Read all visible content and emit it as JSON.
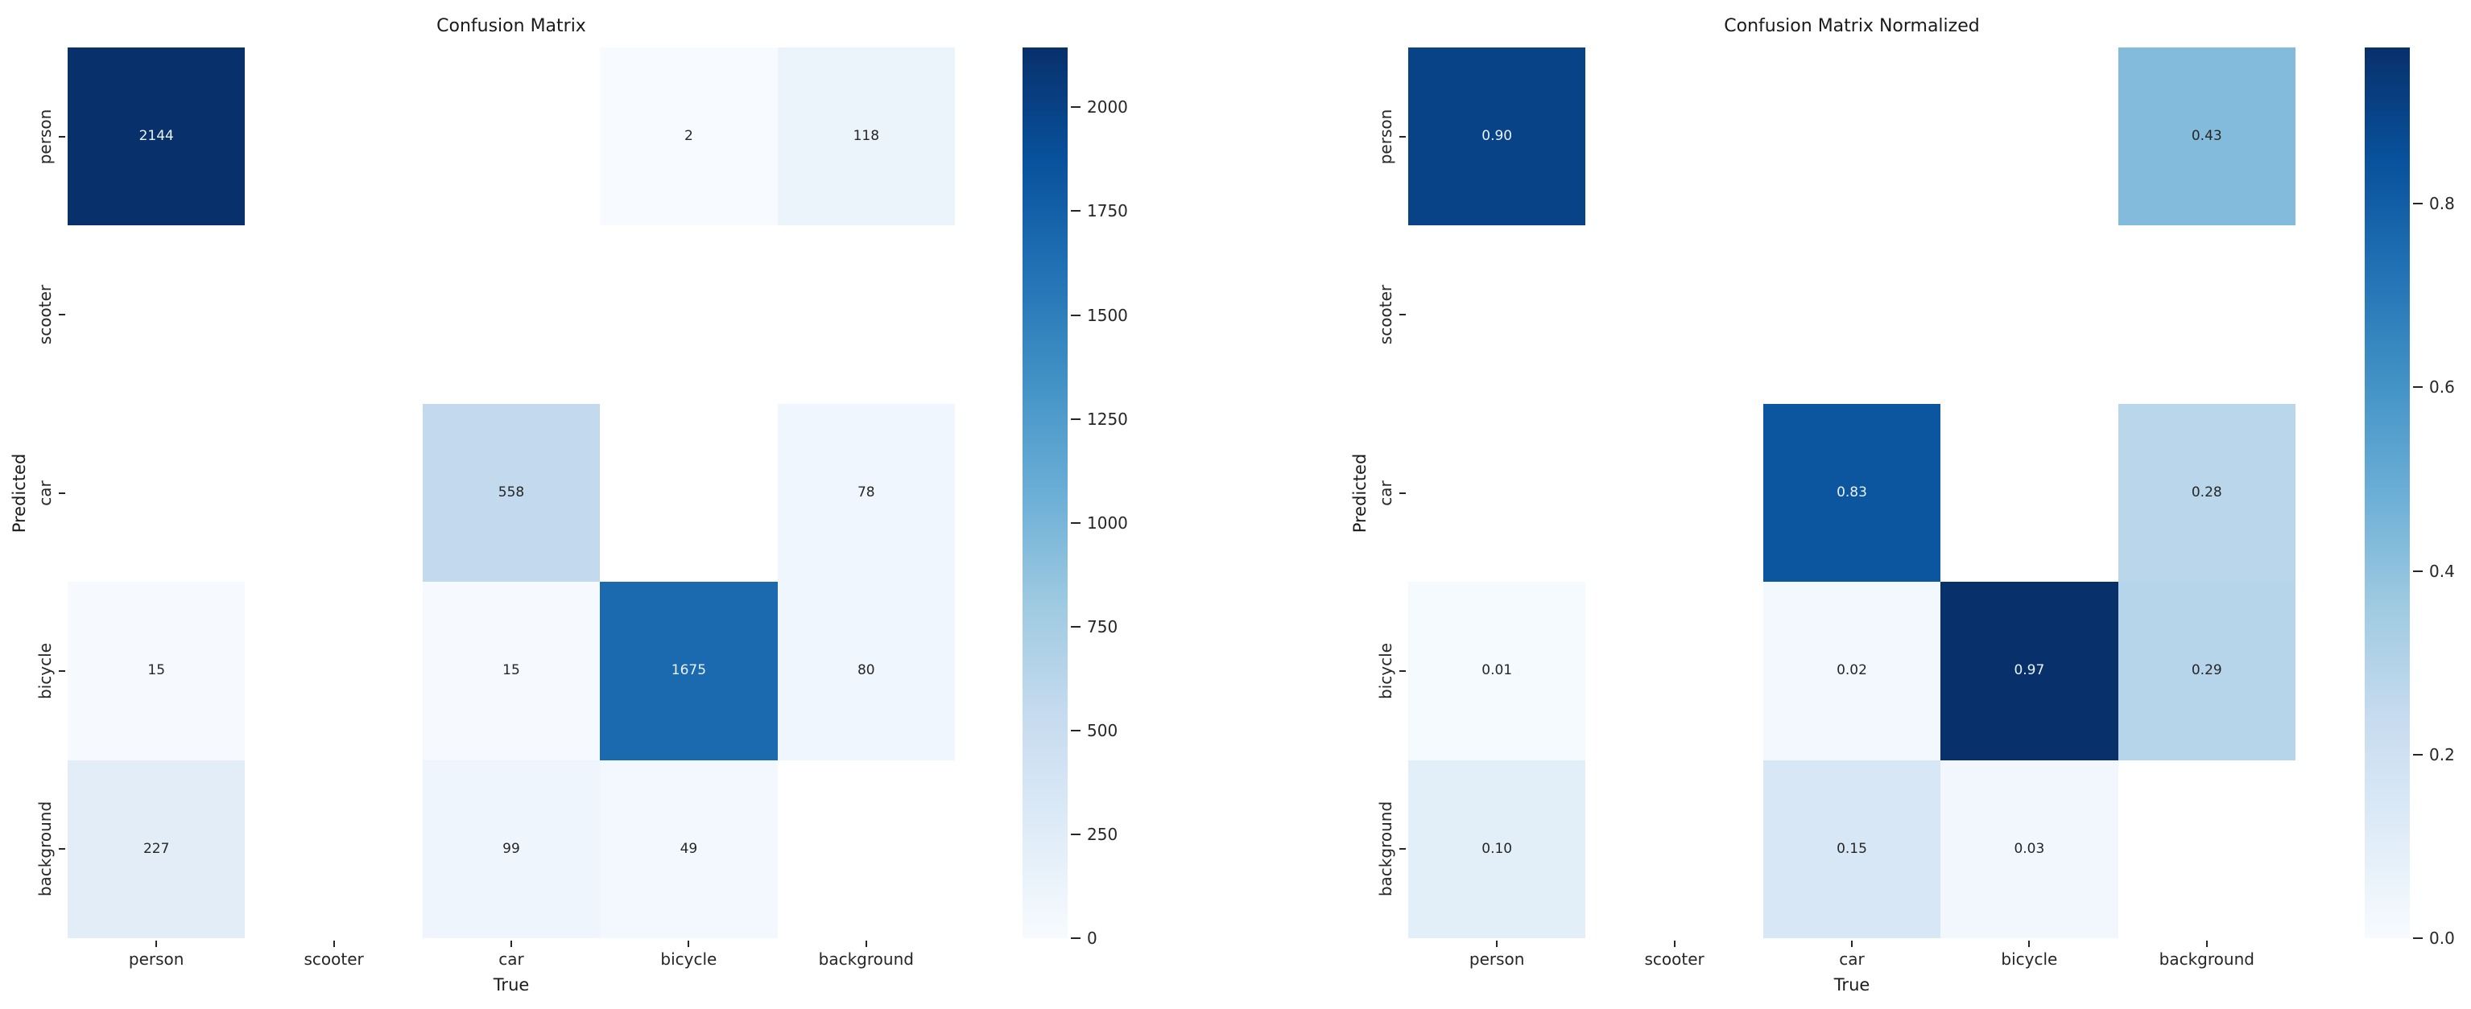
{
  "figure": {
    "background": "#ffffff",
    "text_color": "#262626"
  },
  "chart_data": [
    {
      "type": "heatmap",
      "title": "Confusion Matrix",
      "xlabel": "True",
      "ylabel": "Predicted",
      "x_categories": [
        "person",
        "scooter",
        "car",
        "bicycle",
        "background"
      ],
      "y_categories": [
        "person",
        "scooter",
        "car",
        "bicycle",
        "background"
      ],
      "matrix": [
        [
          2144,
          null,
          null,
          2,
          118
        ],
        [
          null,
          null,
          null,
          null,
          null
        ],
        [
          null,
          null,
          558,
          null,
          78
        ],
        [
          15,
          null,
          15,
          1675,
          80
        ],
        [
          227,
          null,
          99,
          49,
          null
        ]
      ],
      "vmin": 0,
      "vmax": 2144,
      "value_decimals": 0,
      "colormap": "Blues",
      "colormap_min_color": "#f7fbff",
      "colormap_max_color": "#08306b",
      "colorbar_position": "right",
      "colorbar_ticks": [
        0,
        250,
        500,
        750,
        1000,
        1250,
        1500,
        1750,
        2000
      ],
      "colorbar_tick_labels": [
        "0",
        "250",
        "500",
        "750",
        "1000",
        "1250",
        "1500",
        "1750",
        "2000"
      ],
      "grid": false
    },
    {
      "type": "heatmap",
      "title": "Confusion Matrix Normalized",
      "xlabel": "True",
      "ylabel": "Predicted",
      "x_categories": [
        "person",
        "scooter",
        "car",
        "bicycle",
        "background"
      ],
      "y_categories": [
        "person",
        "scooter",
        "car",
        "bicycle",
        "background"
      ],
      "matrix": [
        [
          0.9,
          null,
          null,
          null,
          0.43
        ],
        [
          null,
          null,
          null,
          null,
          null
        ],
        [
          null,
          null,
          0.83,
          null,
          0.28
        ],
        [
          0.01,
          null,
          0.02,
          0.97,
          0.29
        ],
        [
          0.1,
          null,
          0.15,
          0.03,
          null
        ]
      ],
      "vmin": 0,
      "vmax": 0.97,
      "value_decimals": 2,
      "colormap": "Blues",
      "colormap_min_color": "#f7fbff",
      "colormap_max_color": "#08306b",
      "colorbar_position": "right",
      "colorbar_ticks": [
        0.0,
        0.2,
        0.4,
        0.6,
        0.8
      ],
      "colorbar_tick_labels": [
        "0.0",
        "0.2",
        "0.4",
        "0.6",
        "0.8"
      ],
      "grid": false
    }
  ]
}
